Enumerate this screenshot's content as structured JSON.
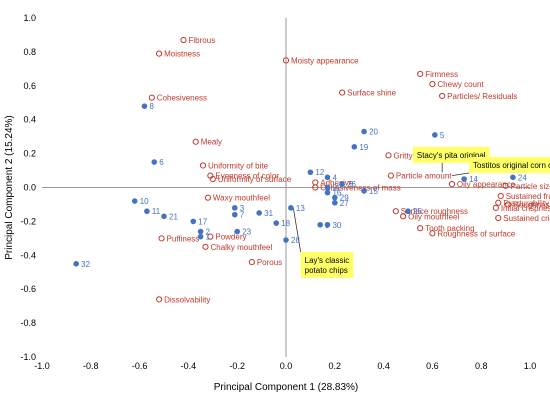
{
  "chart_data": {
    "type": "scatter",
    "xlabel": "Principal Component 1 (28.83%)",
    "ylabel": "Principal Component 2 (15.24%)",
    "xlim": [
      -1.0,
      1.0
    ],
    "ylim": [
      -1.0,
      1.0
    ],
    "xticks": [
      "-1.0",
      "-0.8",
      "-0.6",
      "-0.4",
      "-0.2",
      "0.0",
      "0.2",
      "0.4",
      "0.6",
      "0.8",
      "1.0"
    ],
    "yticks": [
      "1.0",
      "0.8",
      "0.6",
      "0.4",
      "0.2",
      "0.0",
      "-0.2",
      "-0.4",
      "-0.6",
      "-0.8",
      "-1.0"
    ],
    "grid": false,
    "colors": {
      "attribute": "#c0392b",
      "sample": "#4472c4",
      "callout_fill": "#ffff66"
    },
    "attributes": [
      {
        "label": "Fibrous",
        "x": -0.42,
        "y": 0.87
      },
      {
        "label": "Moistness",
        "x": -0.52,
        "y": 0.79
      },
      {
        "label": "Moisty appearance",
        "x": 0.0,
        "y": 0.75
      },
      {
        "label": "Cohesiveness",
        "x": -0.55,
        "y": 0.53
      },
      {
        "label": "Surface shine",
        "x": 0.23,
        "y": 0.56
      },
      {
        "label": "Firmness",
        "x": 0.55,
        "y": 0.67
      },
      {
        "label": "Chewy count",
        "x": 0.6,
        "y": 0.61
      },
      {
        "label": "Particles/ Residuals",
        "x": 0.64,
        "y": 0.54
      },
      {
        "label": "Mealy",
        "x": -0.37,
        "y": 0.27
      },
      {
        "label": "Uniformity of bite",
        "x": -0.34,
        "y": 0.13
      },
      {
        "label": "Evenness of color",
        "x": -0.31,
        "y": 0.07
      },
      {
        "label": "Uniformity of surface",
        "x": -0.3,
        "y": 0.05
      },
      {
        "label": "Gritty",
        "x": 0.42,
        "y": 0.19
      },
      {
        "label": "Particle amount",
        "x": 0.43,
        "y": 0.07
      },
      {
        "label": "Adhesive",
        "x": 0.12,
        "y": 0.03
      },
      {
        "label": "Cohesiveness of mass",
        "x": 0.12,
        "y": 0.0
      },
      {
        "label": "Oily appearance",
        "x": 0.68,
        "y": 0.02
      },
      {
        "label": "Particle size",
        "x": 0.9,
        "y": 0.01
      },
      {
        "label": "Sustained fracturability",
        "x": 0.88,
        "y": -0.05
      },
      {
        "label": "Fracturability",
        "x": 0.87,
        "y": -0.09
      },
      {
        "label": "Initial crispness",
        "x": 0.86,
        "y": -0.12
      },
      {
        "label": "Roughness of mass",
        "x": 0.91,
        "y": -0.1
      },
      {
        "label": "Sustained crispness",
        "x": 0.87,
        "y": -0.18
      },
      {
        "label": "Waxy mouthfeel",
        "x": -0.32,
        "y": -0.06
      },
      {
        "label": "Surface roughness",
        "x": 0.45,
        "y": -0.14
      },
      {
        "label": "Oily mouthfeel",
        "x": 0.48,
        "y": -0.17
      },
      {
        "label": "Tooth packing",
        "x": 0.55,
        "y": -0.24
      },
      {
        "label": "Roughness of surface",
        "x": 0.6,
        "y": -0.27
      },
      {
        "label": "Puffiness",
        "x": -0.51,
        "y": -0.3
      },
      {
        "label": "Powdery",
        "x": -0.31,
        "y": -0.29
      },
      {
        "label": "Chalky mouthfeel",
        "x": -0.33,
        "y": -0.35
      },
      {
        "label": "Porous",
        "x": -0.14,
        "y": -0.44
      },
      {
        "label": "Dissolvability",
        "x": -0.52,
        "y": -0.66
      }
    ],
    "samples": [
      {
        "label": "1",
        "x": -0.35,
        "y": -0.29
      },
      {
        "label": "2",
        "x": -0.35,
        "y": -0.26
      },
      {
        "label": "3",
        "x": -0.21,
        "y": -0.12
      },
      {
        "label": "4",
        "x": 0.17,
        "y": 0.06
      },
      {
        "label": "5",
        "x": 0.61,
        "y": 0.31
      },
      {
        "label": "6",
        "x": -0.54,
        "y": 0.15
      },
      {
        "label": "7",
        "x": -0.21,
        "y": -0.16
      },
      {
        "label": "8",
        "x": -0.58,
        "y": 0.48
      },
      {
        "label": "9",
        "x": 0.14,
        "y": -0.22
      },
      {
        "label": "10",
        "x": -0.62,
        "y": -0.08
      },
      {
        "label": "11",
        "x": -0.57,
        "y": -0.14
      },
      {
        "label": "12",
        "x": 0.1,
        "y": 0.09
      },
      {
        "label": "13",
        "x": 0.02,
        "y": -0.12
      },
      {
        "label": "14",
        "x": 0.73,
        "y": 0.05
      },
      {
        "label": "15",
        "x": 0.32,
        "y": -0.02
      },
      {
        "label": "16",
        "x": 0.17,
        "y": -0.03
      },
      {
        "label": "17",
        "x": -0.38,
        "y": -0.2
      },
      {
        "label": "18",
        "x": -0.04,
        "y": -0.21
      },
      {
        "label": "19",
        "x": 0.28,
        "y": 0.24
      },
      {
        "label": "20",
        "x": 0.32,
        "y": 0.33
      },
      {
        "label": "21",
        "x": -0.5,
        "y": -0.17
      },
      {
        "label": "22",
        "x": 0.17,
        "y": 0.0
      },
      {
        "label": "23",
        "x": -0.2,
        "y": -0.26
      },
      {
        "label": "24",
        "x": 0.93,
        "y": 0.06
      },
      {
        "label": "25",
        "x": 0.5,
        "y": -0.14
      },
      {
        "label": "26",
        "x": 0.23,
        "y": 0.02
      },
      {
        "label": "27",
        "x": 0.2,
        "y": -0.09
      },
      {
        "label": "28",
        "x": 0.0,
        "y": -0.31
      },
      {
        "label": "29",
        "x": 0.2,
        "y": -0.06
      },
      {
        "label": "30",
        "x": 0.17,
        "y": -0.22
      },
      {
        "label": "31",
        "x": -0.11,
        "y": -0.15
      },
      {
        "label": "32",
        "x": -0.86,
        "y": -0.45
      }
    ],
    "callouts": [
      {
        "lines": [
          "Stacy's pita original"
        ],
        "point": {
          "x": 0.64,
          "y": 0.09
        },
        "box": {
          "x": 0.52,
          "y": 0.24
        }
      },
      {
        "lines": [
          "Tostitos original corn chips"
        ],
        "point": {
          "x": 0.68,
          "y": 0.07
        },
        "box": {
          "x": 0.75,
          "y": 0.18
        }
      },
      {
        "lines": [
          "Lay's classic",
          "potato chips"
        ],
        "point": {
          "x": 0.03,
          "y": -0.12
        },
        "box": {
          "x": 0.06,
          "y": -0.38
        }
      }
    ]
  }
}
